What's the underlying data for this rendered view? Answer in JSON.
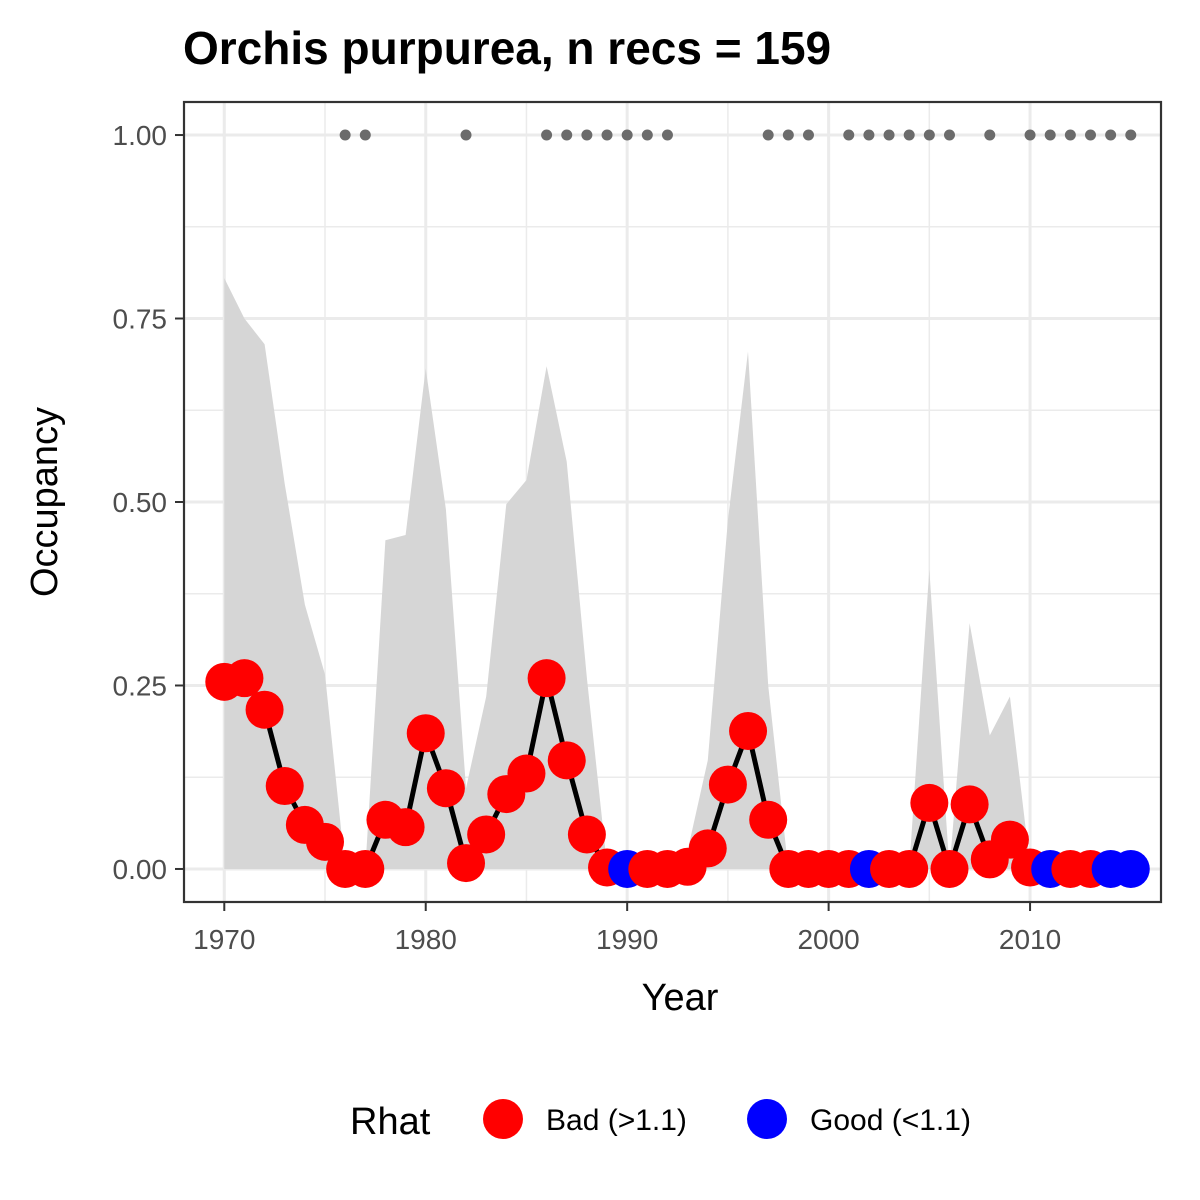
{
  "chart_data": {
    "type": "line",
    "title": "Orchis purpurea, n recs = 159",
    "xlabel": "Year",
    "ylabel": "Occupancy",
    "xlim": [
      1968,
      2016.5
    ],
    "ylim": [
      -0.045,
      1.045
    ],
    "x_ticks": [
      1970,
      1980,
      1990,
      2000,
      2010
    ],
    "x_tick_labels": [
      "1970",
      "1980",
      "1990",
      "2000",
      "2010"
    ],
    "y_ticks": [
      0,
      0.25,
      0.5,
      0.75,
      1
    ],
    "y_tick_labels": [
      "0.00",
      "0.25",
      "0.50",
      "0.75",
      "1.00"
    ],
    "grid": true,
    "legend": {
      "title": "Rhat",
      "position": "bottom",
      "entries": [
        {
          "key": "bad",
          "label": "Bad (>1.1)",
          "color": "#ff0000"
        },
        {
          "key": "good",
          "label": "Good (<1.1)",
          "color": "#0000ff"
        }
      ]
    },
    "colors": {
      "bad": "#ff0000",
      "good": "#0000ff",
      "line": "#000000",
      "ribbon": "#d6d6d6",
      "record_dots": "#6b6b6b"
    },
    "years": [
      1970,
      1971,
      1972,
      1973,
      1974,
      1975,
      1976,
      1977,
      1978,
      1979,
      1980,
      1981,
      1982,
      1983,
      1984,
      1985,
      1986,
      1987,
      1988,
      1989,
      1990,
      1991,
      1992,
      1993,
      1994,
      1995,
      1996,
      1997,
      1998,
      1999,
      2000,
      2001,
      2002,
      2003,
      2004,
      2005,
      2006,
      2007,
      2008,
      2009,
      2010,
      2011,
      2012,
      2013,
      2014,
      2015
    ],
    "occupancy": [
      0.255,
      0.26,
      0.217,
      0.113,
      0.06,
      0.037,
      0,
      0,
      0.067,
      0.057,
      0.185,
      0.11,
      0.008,
      0.047,
      0.102,
      0.13,
      0.26,
      0.148,
      0.047,
      0.002,
      0,
      0,
      0,
      0.003,
      0.028,
      0.115,
      0.188,
      0.067,
      0,
      0,
      0,
      0,
      0,
      0,
      0,
      0.09,
      0,
      0.088,
      0.013,
      0.04,
      0.002,
      0,
      0,
      0,
      0,
      0
    ],
    "rhat": [
      "bad",
      "bad",
      "bad",
      "bad",
      "bad",
      "bad",
      "bad",
      "bad",
      "bad",
      "bad",
      "bad",
      "bad",
      "bad",
      "bad",
      "bad",
      "bad",
      "bad",
      "bad",
      "bad",
      "bad",
      "good",
      "bad",
      "bad",
      "bad",
      "bad",
      "bad",
      "bad",
      "bad",
      "bad",
      "bad",
      "bad",
      "bad",
      "good",
      "bad",
      "bad",
      "bad",
      "bad",
      "bad",
      "bad",
      "bad",
      "bad",
      "good",
      "bad",
      "bad",
      "good",
      "good"
    ],
    "ribbon_upper": [
      0.805,
      0.75,
      0.715,
      0.525,
      0.36,
      0.265,
      0,
      0,
      0.448,
      0.455,
      0.682,
      0.49,
      0.11,
      0.235,
      0.497,
      0.53,
      0.685,
      0.555,
      0.26,
      0.005,
      0,
      0,
      0,
      0.025,
      0.148,
      0.475,
      0.705,
      0.25,
      0,
      0,
      0,
      0,
      0,
      0,
      0,
      0.408,
      0,
      0.335,
      0.182,
      0.235,
      0.005,
      0,
      0,
      0,
      0,
      0
    ],
    "ribbon_lower": [
      0,
      0,
      0,
      0,
      0,
      0,
      0,
      0,
      0,
      0,
      0,
      0,
      0,
      0,
      0,
      0,
      0,
      0,
      0,
      0,
      0,
      0,
      0,
      0,
      0,
      0,
      0,
      0,
      0,
      0,
      0,
      0,
      0,
      0,
      0,
      0,
      0,
      0,
      0,
      0,
      0,
      0,
      0,
      0,
      0,
      0
    ],
    "record_years": [
      1976,
      1977,
      1982,
      1986,
      1987,
      1988,
      1989,
      1990,
      1991,
      1992,
      1997,
      1998,
      1999,
      2001,
      2002,
      2003,
      2004,
      2005,
      2006,
      2008,
      2010,
      2011,
      2012,
      2013,
      2014,
      2015
    ],
    "record_value": 1.0
  }
}
